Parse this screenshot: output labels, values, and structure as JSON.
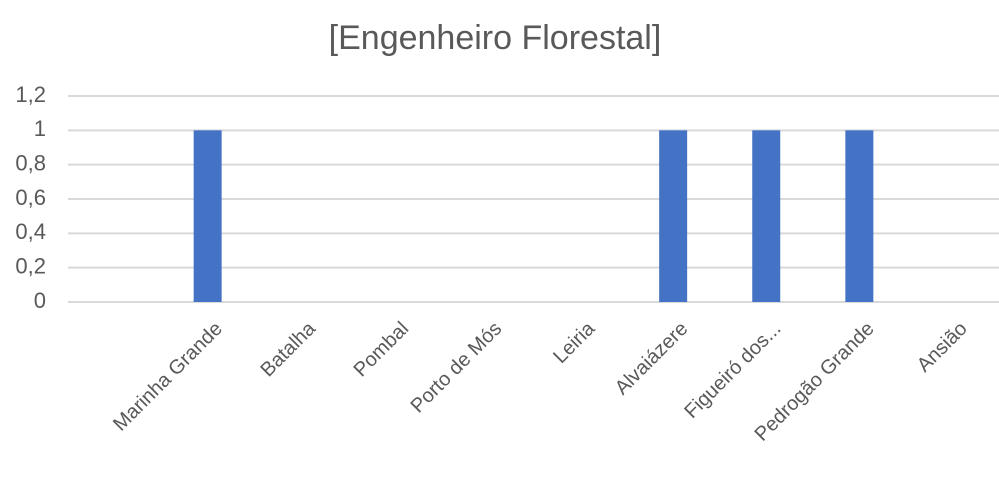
{
  "chart_data": {
    "type": "bar",
    "title": "[Engenheiro Florestal]",
    "categories": [
      null,
      "Marinha Grande",
      "Batalha",
      "Pombal",
      "Porto de Mós",
      "Leiria",
      "Alvaiázere",
      "Figueiró dos...",
      "Pedrogão Grande",
      "Ansião"
    ],
    "values": [
      0,
      1,
      0,
      0,
      0,
      0,
      1,
      1,
      1,
      0
    ],
    "color": "#4472c4",
    "ylim": [
      0,
      1.2
    ],
    "yticks": [
      0,
      {
        "value": 0.2,
        "label": "0,2"
      },
      {
        "value": 0.4,
        "label": "0,4"
      },
      {
        "value": 0.6,
        "label": "0,6"
      },
      {
        "value": 0.8,
        "label": "0,8"
      },
      1,
      {
        "value": 1.2,
        "label": "1,2"
      }
    ],
    "grid": true
  }
}
